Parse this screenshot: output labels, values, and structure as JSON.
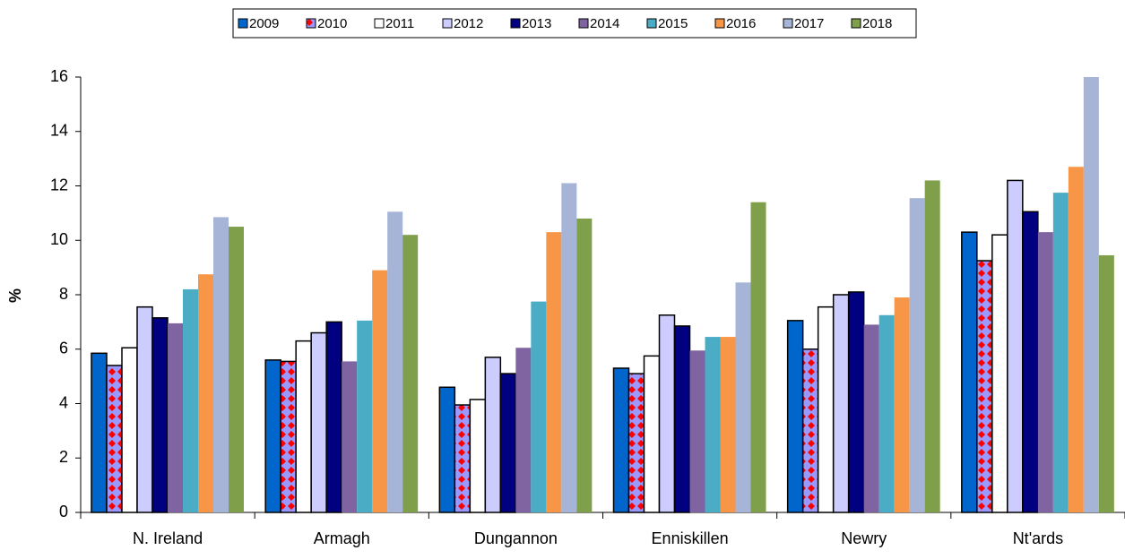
{
  "chart_data": {
    "type": "bar",
    "y_label": "%",
    "categories": [
      "N. Ireland",
      "Armagh",
      "Dungannon",
      "Enniskillen",
      "Newry",
      "Nt'ards"
    ],
    "series": [
      {
        "name": "2009",
        "color": "#0066cc",
        "values": [
          5.85,
          5.6,
          4.6,
          5.3,
          7.05,
          10.3
        ]
      },
      {
        "name": "2010",
        "color": "#9999ff",
        "values": [
          5.4,
          5.55,
          3.95,
          5.1,
          6.0,
          9.25
        ]
      },
      {
        "name": "2011",
        "color": "#ffffff",
        "values": [
          6.05,
          6.3,
          4.15,
          5.75,
          7.55,
          10.2
        ]
      },
      {
        "name": "2012",
        "color": "#ccccff",
        "values": [
          7.55,
          6.6,
          5.7,
          7.25,
          8.0,
          12.2
        ]
      },
      {
        "name": "2013",
        "color": "#000080",
        "values": [
          7.15,
          7.0,
          5.1,
          6.85,
          8.1,
          11.05
        ]
      },
      {
        "name": "2014",
        "color": "#8064a2",
        "values": [
          6.95,
          5.55,
          6.05,
          5.95,
          6.9,
          10.3
        ]
      },
      {
        "name": "2015",
        "color": "#4bacc6",
        "values": [
          8.2,
          7.05,
          7.75,
          6.45,
          7.25,
          11.75
        ]
      },
      {
        "name": "2016",
        "color": "#f79646",
        "values": [
          8.75,
          8.9,
          10.3,
          6.45,
          7.9,
          12.7
        ]
      },
      {
        "name": "2017",
        "color": "#a6b4d8",
        "values": [
          10.85,
          11.05,
          12.1,
          8.45,
          11.55,
          16.0
        ]
      },
      {
        "name": "2018",
        "color": "#7f9f4b",
        "values": [
          10.5,
          10.2,
          10.8,
          11.4,
          12.2,
          9.45
        ]
      }
    ],
    "ylim": [
      0,
      16
    ],
    "yticks": [
      0,
      2,
      4,
      6,
      8,
      10,
      12,
      14,
      16
    ]
  }
}
